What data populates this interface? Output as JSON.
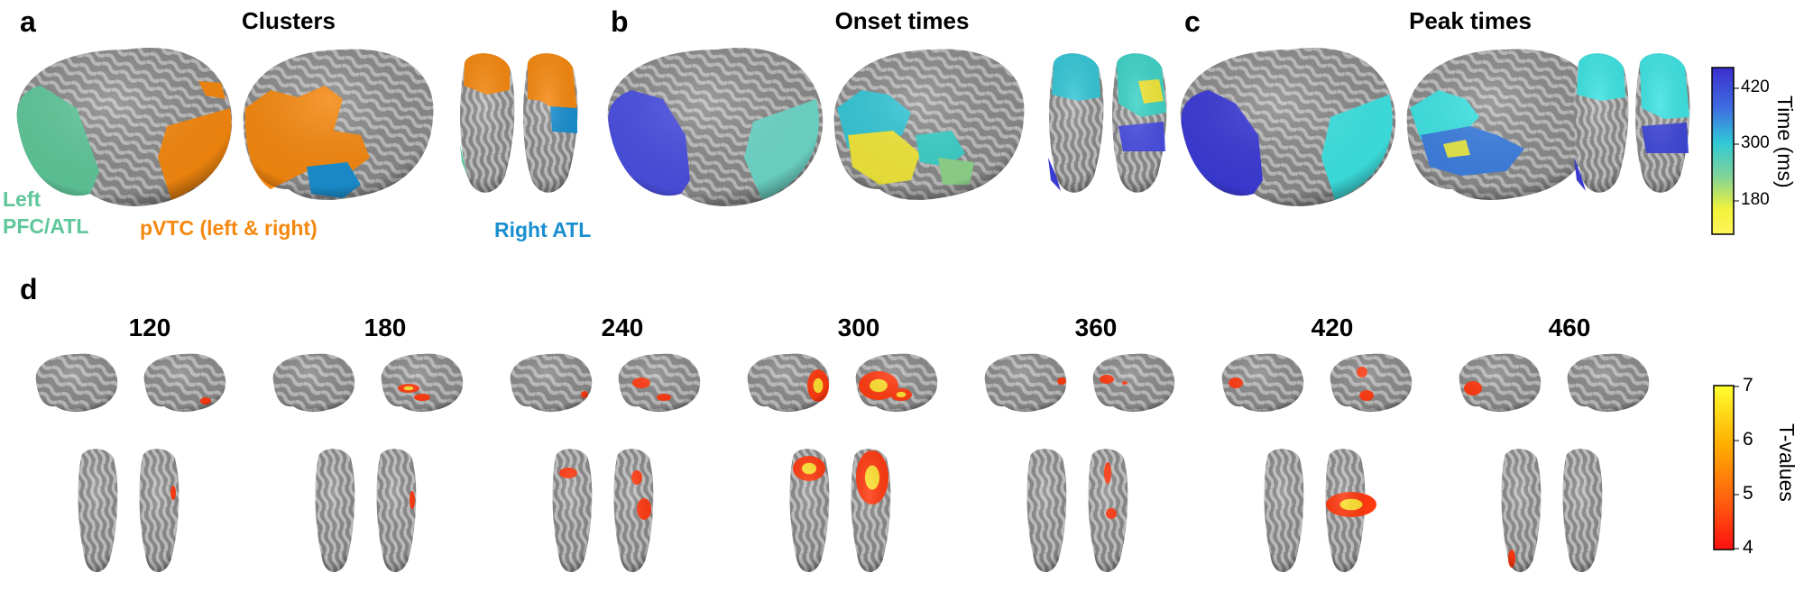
{
  "panels": {
    "a": {
      "letter": "a",
      "title": "Clusters"
    },
    "b": {
      "letter": "b",
      "title": "Onset times"
    },
    "c": {
      "letter": "c",
      "title": "Peak times"
    },
    "d": {
      "letter": "d"
    }
  },
  "clusters": {
    "left_pfc_atl": {
      "line1": "Left",
      "line2": "PFC/ATL",
      "color": "#5fc79a"
    },
    "pvtc": {
      "label": "pVTC (left & right)",
      "color": "#f5880f"
    },
    "right_atl": {
      "label": "Right ATL",
      "color": "#1a8fd0"
    }
  },
  "time_colorbar": {
    "title": "Time (ms)",
    "ticks": [
      "420",
      "300",
      "180"
    ],
    "colors": [
      "#3b2ecf",
      "#3e6fe0",
      "#30c9d6",
      "#7fd39a",
      "#f2f23a",
      "#fff45a"
    ]
  },
  "time_windows": [
    "120",
    "180",
    "240",
    "300",
    "360",
    "420",
    "460"
  ],
  "tvalue_colorbar": {
    "title": "T-values",
    "ticks": [
      "7",
      "6",
      "5",
      "4"
    ],
    "colors": [
      "#ffff30",
      "#ffb000",
      "#ff6010",
      "#ff1010"
    ]
  }
}
